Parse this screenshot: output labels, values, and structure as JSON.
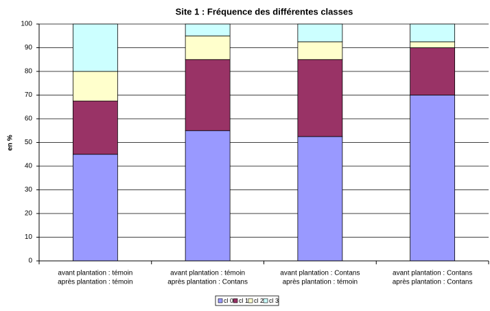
{
  "chart_data": {
    "type": "stacked_bar",
    "title": "Site 1 : Fréquence des différentes classes",
    "y_label": "en %",
    "categories": [
      [
        "avant plantation : témoin",
        "après plantation : témoin"
      ],
      [
        "avant plantation : témoin",
        "après plantation : Contans"
      ],
      [
        "avant plantation : Contans",
        "après plantation : témoin"
      ],
      [
        "avant plantation : Contans",
        "après plantation : Contans"
      ]
    ],
    "series": [
      {
        "name": "cl 0",
        "color": "#9999ff",
        "values": [
          45,
          55,
          52.5,
          70
        ]
      },
      {
        "name": "cl 1",
        "color": "#993366",
        "values": [
          22.5,
          30,
          32.5,
          20
        ]
      },
      {
        "name": "cl 2",
        "color": "#ffffcc",
        "values": [
          12.5,
          10,
          7.5,
          2.5
        ]
      },
      {
        "name": "cl 3",
        "color": "#ccffff",
        "values": [
          20,
          5,
          7.5,
          7.5
        ]
      }
    ],
    "ylim": [
      0,
      100
    ],
    "yticks": [
      0,
      10,
      20,
      30,
      40,
      50,
      60,
      70,
      80,
      90,
      100
    ],
    "grid": true
  }
}
